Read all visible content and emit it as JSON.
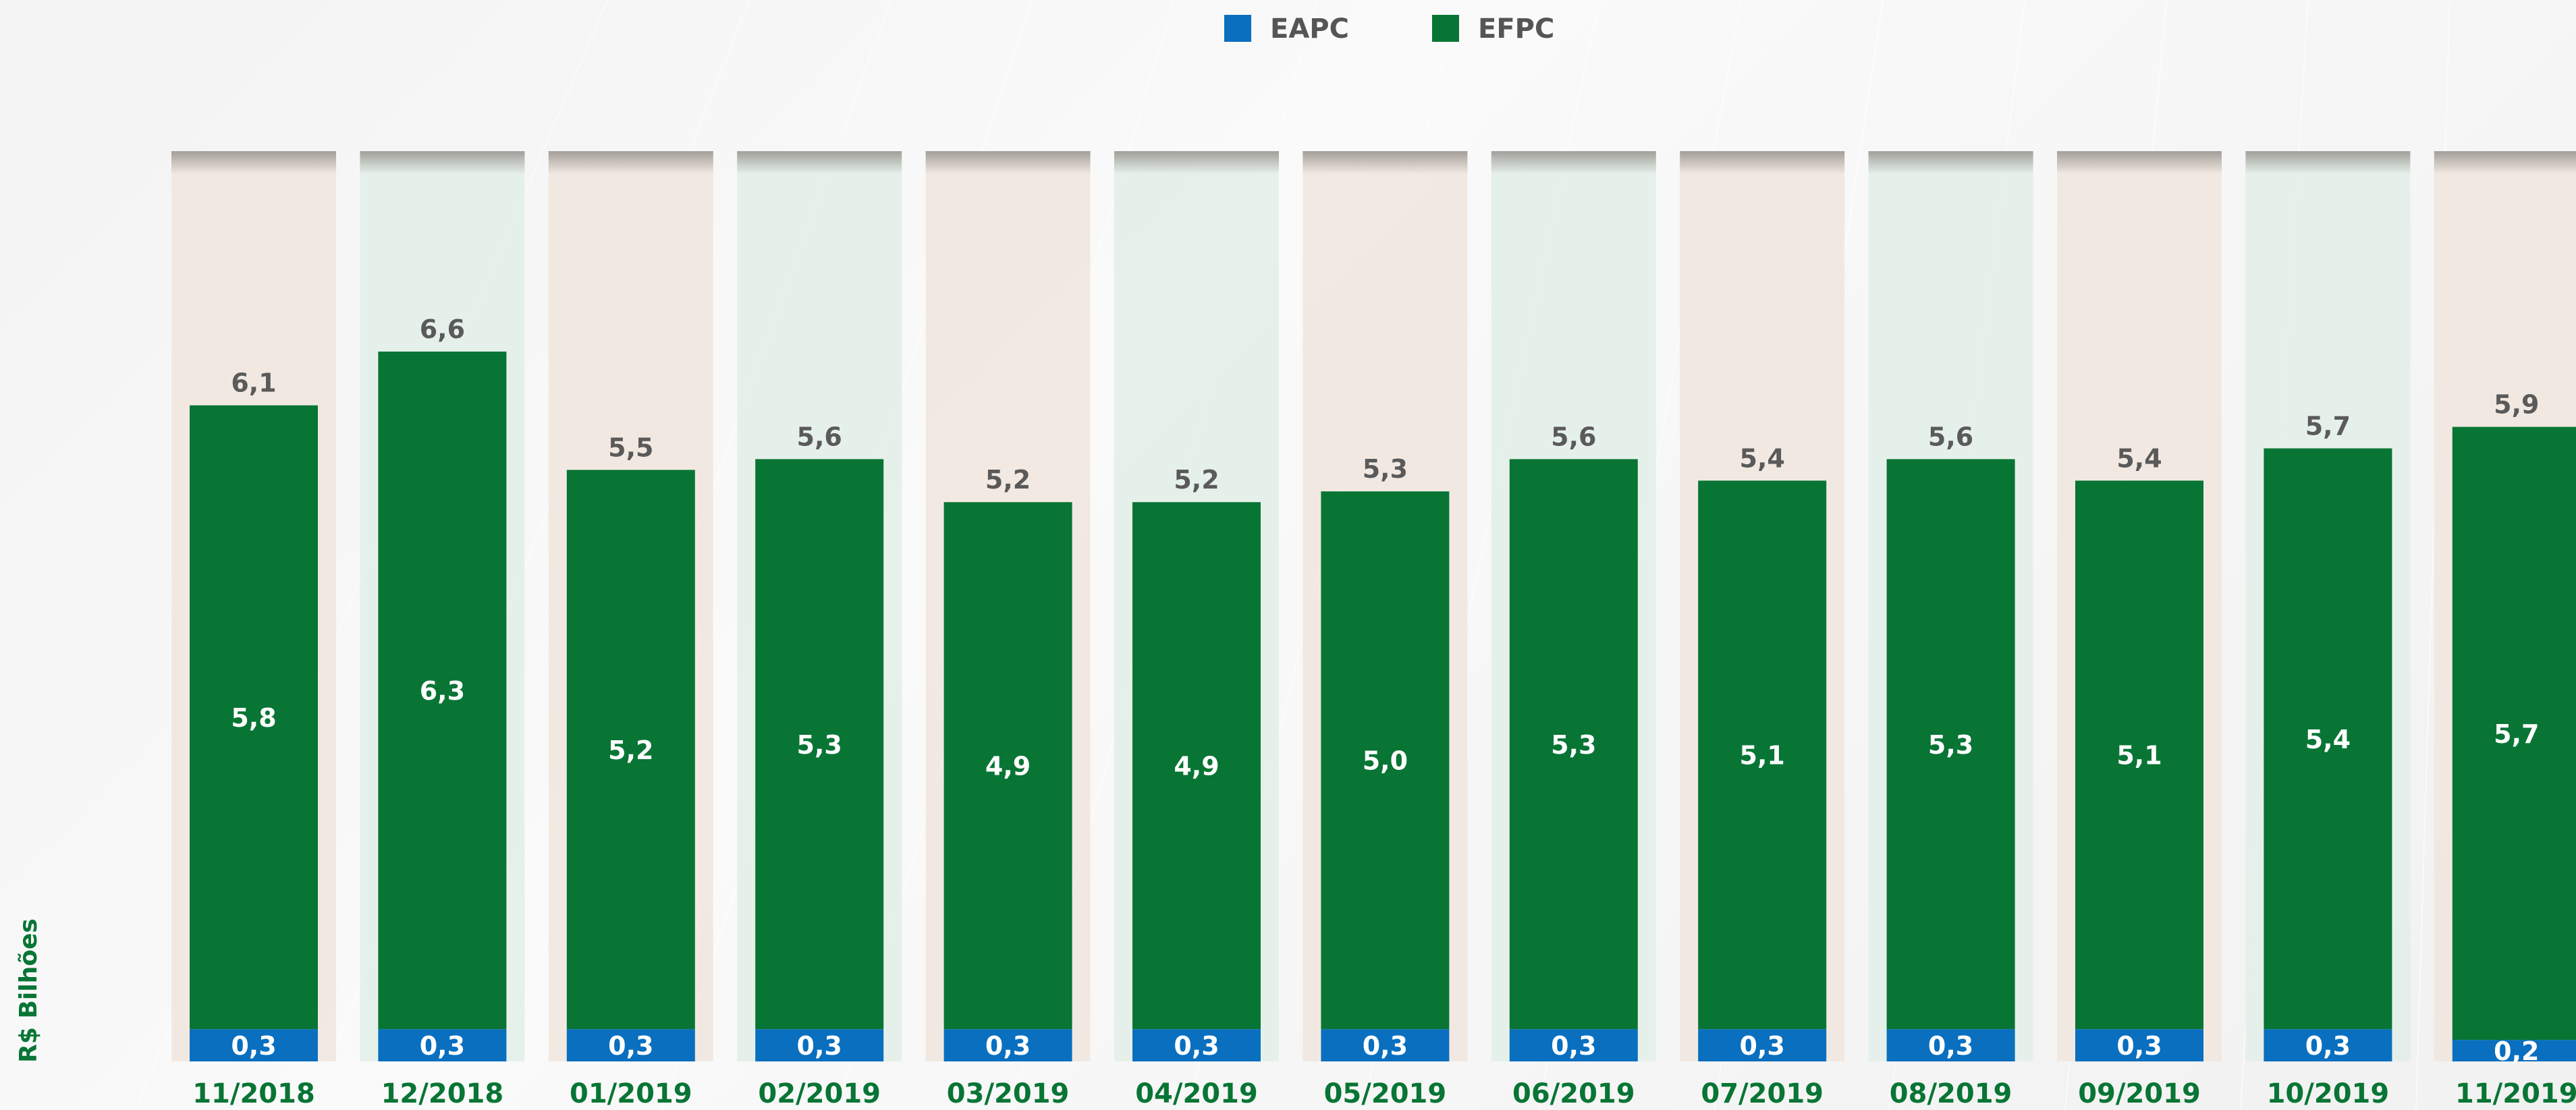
{
  "chart_data": {
    "type": "bar",
    "stacked": true,
    "ylabel": "R$ Bilhões",
    "categories": [
      "11/2018",
      "12/2018",
      "01/2019",
      "02/2019",
      "03/2019",
      "04/2019",
      "05/2019",
      "06/2019",
      "07/2019",
      "08/2019",
      "09/2019",
      "10/2019",
      "11/2019"
    ],
    "series": [
      {
        "name": "EAPC",
        "color": "#0a6fbf",
        "values": [
          0.3,
          0.3,
          0.3,
          0.3,
          0.3,
          0.3,
          0.3,
          0.3,
          0.3,
          0.3,
          0.3,
          0.3,
          0.2
        ],
        "labels": [
          "0,3",
          "0,3",
          "0,3",
          "0,3",
          "0,3",
          "0,3",
          "0,3",
          "0,3",
          "0,3",
          "0,3",
          "0,3",
          "0,3",
          "0,2"
        ]
      },
      {
        "name": "EFPC",
        "color": "#087535",
        "values": [
          5.8,
          6.3,
          5.2,
          5.3,
          4.9,
          4.9,
          5.0,
          5.3,
          5.1,
          5.3,
          5.1,
          5.4,
          5.7
        ],
        "labels": [
          "5,8",
          "6,3",
          "5,2",
          "5,3",
          "4,9",
          "4,9",
          "5,0",
          "5,3",
          "5,1",
          "5,3",
          "5,1",
          "5,4",
          "5,7"
        ]
      }
    ],
    "totals": [
      6.1,
      6.6,
      5.5,
      5.6,
      5.2,
      5.2,
      5.3,
      5.6,
      5.4,
      5.6,
      5.4,
      5.7,
      5.9
    ],
    "total_labels": [
      "6,1",
      "6,6",
      "5,5",
      "5,6",
      "5,2",
      "5,2",
      "5,3",
      "5,6",
      "5,4",
      "5,6",
      "5,4",
      "5,7",
      "5,9"
    ],
    "ylim": [
      0,
      8.2
    ],
    "legend_position": "top-center",
    "grid": false,
    "axis_label_color": "#087535",
    "total_label_color": "#5a5a5a"
  }
}
